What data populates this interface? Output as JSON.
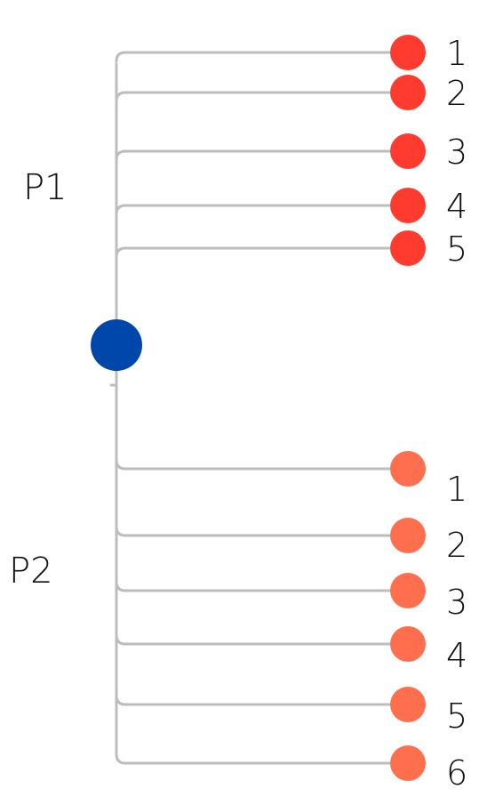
{
  "colors": {
    "root": "#0047ab",
    "group_p1_leaves": "#ff3b30",
    "group_p2_leaves": "#ff6f4e",
    "connectors": "#bdbdbd",
    "text": "#111111"
  },
  "groups": [
    {
      "label": "P1",
      "leaves": [
        "1",
        "2",
        "3",
        "4",
        "5"
      ]
    },
    {
      "label": "P2",
      "leaves": [
        "1",
        "2",
        "3",
        "4",
        "5",
        "6"
      ]
    }
  ]
}
